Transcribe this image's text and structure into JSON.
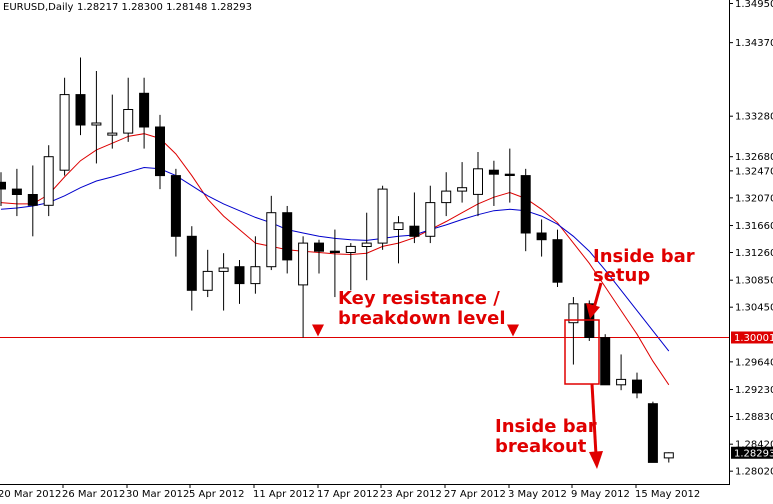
{
  "header": {
    "symbol": "EURUSD,Daily",
    "ohlc": "1.28217 1.28300 1.28148 1.28293"
  },
  "chart_data": {
    "type": "candlestick",
    "symbol": "EURUSD",
    "timeframe": "Daily",
    "ylim": [
      1.2783,
      1.3495
    ],
    "y_ticks": [
      "1.34950",
      "1.34370",
      "1.33280",
      "1.32680",
      "1.32470",
      "1.32070",
      "1.31660",
      "1.31260",
      "1.30850",
      "1.30450",
      "1.29640",
      "1.29230",
      "1.28830",
      "1.28420",
      "1.28020"
    ],
    "x_ticks": [
      "20 Mar 2012",
      "26 Mar 2012",
      "30 Mar 2012",
      "5 Apr 2012",
      "11 Apr 2012",
      "17 Apr 2012",
      "23 Apr 2012",
      "27 Apr 2012",
      "3 May 2012",
      "9 May 2012",
      "15 May 2012"
    ],
    "candles": [
      {
        "o": 1.323,
        "h": 1.3245,
        "l": 1.3195,
        "c": 1.322
      },
      {
        "o": 1.322,
        "h": 1.325,
        "l": 1.318,
        "c": 1.3212
      },
      {
        "o": 1.3212,
        "h": 1.3255,
        "l": 1.315,
        "c": 1.3196
      },
      {
        "o": 1.3196,
        "h": 1.3285,
        "l": 1.318,
        "c": 1.3268
      },
      {
        "o": 1.3248,
        "h": 1.3385,
        "l": 1.324,
        "c": 1.336
      },
      {
        "o": 1.336,
        "h": 1.3415,
        "l": 1.33,
        "c": 1.3315
      },
      {
        "o": 1.3315,
        "h": 1.3395,
        "l": 1.3258,
        "c": 1.3318
      },
      {
        "o": 1.33,
        "h": 1.336,
        "l": 1.328,
        "c": 1.3303
      },
      {
        "o": 1.3303,
        "h": 1.3385,
        "l": 1.329,
        "c": 1.3338
      },
      {
        "o": 1.3362,
        "h": 1.3385,
        "l": 1.328,
        "c": 1.3312
      },
      {
        "o": 1.3312,
        "h": 1.333,
        "l": 1.322,
        "c": 1.324
      },
      {
        "o": 1.324,
        "h": 1.325,
        "l": 1.312,
        "c": 1.315
      },
      {
        "o": 1.315,
        "h": 1.3165,
        "l": 1.304,
        "c": 1.307
      },
      {
        "o": 1.307,
        "h": 1.313,
        "l": 1.306,
        "c": 1.3098
      },
      {
        "o": 1.3098,
        "h": 1.3125,
        "l": 1.304,
        "c": 1.3103
      },
      {
        "o": 1.3105,
        "h": 1.3115,
        "l": 1.305,
        "c": 1.308
      },
      {
        "o": 1.308,
        "h": 1.315,
        "l": 1.3065,
        "c": 1.3105
      },
      {
        "o": 1.3105,
        "h": 1.321,
        "l": 1.31,
        "c": 1.3185
      },
      {
        "o": 1.3185,
        "h": 1.3195,
        "l": 1.3095,
        "c": 1.3115
      },
      {
        "o": 1.3078,
        "h": 1.315,
        "l": 1.3,
        "c": 1.314
      },
      {
        "o": 1.314,
        "h": 1.3145,
        "l": 1.3095,
        "c": 1.3128
      },
      {
        "o": 1.3128,
        "h": 1.316,
        "l": 1.306,
        "c": 1.3126
      },
      {
        "o": 1.3126,
        "h": 1.314,
        "l": 1.307,
        "c": 1.3135
      },
      {
        "o": 1.3135,
        "h": 1.3185,
        "l": 1.3085,
        "c": 1.314
      },
      {
        "o": 1.314,
        "h": 1.3225,
        "l": 1.313,
        "c": 1.322
      },
      {
        "o": 1.316,
        "h": 1.318,
        "l": 1.311,
        "c": 1.317
      },
      {
        "o": 1.3165,
        "h": 1.3215,
        "l": 1.314,
        "c": 1.315
      },
      {
        "o": 1.315,
        "h": 1.3225,
        "l": 1.314,
        "c": 1.32
      },
      {
        "o": 1.32,
        "h": 1.3245,
        "l": 1.318,
        "c": 1.3217
      },
      {
        "o": 1.3217,
        "h": 1.326,
        "l": 1.32,
        "c": 1.3222
      },
      {
        "o": 1.3212,
        "h": 1.3275,
        "l": 1.318,
        "c": 1.325
      },
      {
        "o": 1.3248,
        "h": 1.3262,
        "l": 1.3195,
        "c": 1.3242
      },
      {
        "o": 1.3242,
        "h": 1.328,
        "l": 1.32,
        "c": 1.324
      },
      {
        "o": 1.324,
        "h": 1.325,
        "l": 1.3128,
        "c": 1.3155
      },
      {
        "o": 1.3155,
        "h": 1.3175,
        "l": 1.312,
        "c": 1.3145
      },
      {
        "o": 1.3145,
        "h": 1.316,
        "l": 1.3075,
        "c": 1.3082
      },
      {
        "o": 1.3022,
        "h": 1.306,
        "l": 1.296,
        "c": 1.305
      },
      {
        "o": 1.305,
        "h": 1.3055,
        "l": 1.2995,
        "c": 1.3
      },
      {
        "o": 1.3,
        "h": 1.3005,
        "l": 1.293,
        "c": 1.293
      },
      {
        "o": 1.293,
        "h": 1.2975,
        "l": 1.2922,
        "c": 1.2938
      },
      {
        "o": 1.2937,
        "h": 1.2948,
        "l": 1.291,
        "c": 1.2918
      },
      {
        "o": 1.2902,
        "h": 1.2905,
        "l": 1.2815,
        "c": 1.2815
      },
      {
        "o": 1.28217,
        "h": 1.283,
        "l": 1.28148,
        "c": 1.28293
      }
    ],
    "moving_averages": [
      {
        "color": "#dd0000",
        "values": [
          1.32,
          1.3198,
          1.3198,
          1.3212,
          1.3238,
          1.3262,
          1.3278,
          1.3288,
          1.3298,
          1.3302,
          1.3295,
          1.3272,
          1.324,
          1.3205,
          1.318,
          1.316,
          1.314,
          1.3135,
          1.313,
          1.3128,
          1.3126,
          1.3124,
          1.3123,
          1.3125,
          1.3135,
          1.314,
          1.3148,
          1.316,
          1.3172,
          1.3185,
          1.3198,
          1.3208,
          1.3215,
          1.3206,
          1.319,
          1.317,
          1.314,
          1.311,
          1.3075,
          1.304,
          1.3005,
          1.2965,
          1.293
        ]
      },
      {
        "color": "#0000cc",
        "values": [
          1.319,
          1.3192,
          1.3195,
          1.32,
          1.321,
          1.3222,
          1.3232,
          1.3238,
          1.3245,
          1.3252,
          1.325,
          1.324,
          1.3225,
          1.321,
          1.3198,
          1.3188,
          1.3178,
          1.317,
          1.316,
          1.3155,
          1.315,
          1.3147,
          1.3145,
          1.3144,
          1.3147,
          1.315,
          1.3152,
          1.316,
          1.3167,
          1.3175,
          1.3182,
          1.3188,
          1.319,
          1.3188,
          1.318,
          1.3168,
          1.315,
          1.3128,
          1.31,
          1.307,
          1.304,
          1.301,
          1.298
        ]
      }
    ],
    "horizontal_line": {
      "value": 1.30001,
      "label": "1.30001",
      "color": "#dd0000"
    },
    "current_price": {
      "value": 1.28293,
      "label": "1.28293"
    },
    "annotations": [
      {
        "lines": [
          "Key resistance /",
          "breakdown level"
        ]
      },
      {
        "lines": [
          "Inside bar",
          "setup"
        ]
      },
      {
        "lines": [
          "Inside bar",
          "breakout"
        ]
      }
    ]
  }
}
